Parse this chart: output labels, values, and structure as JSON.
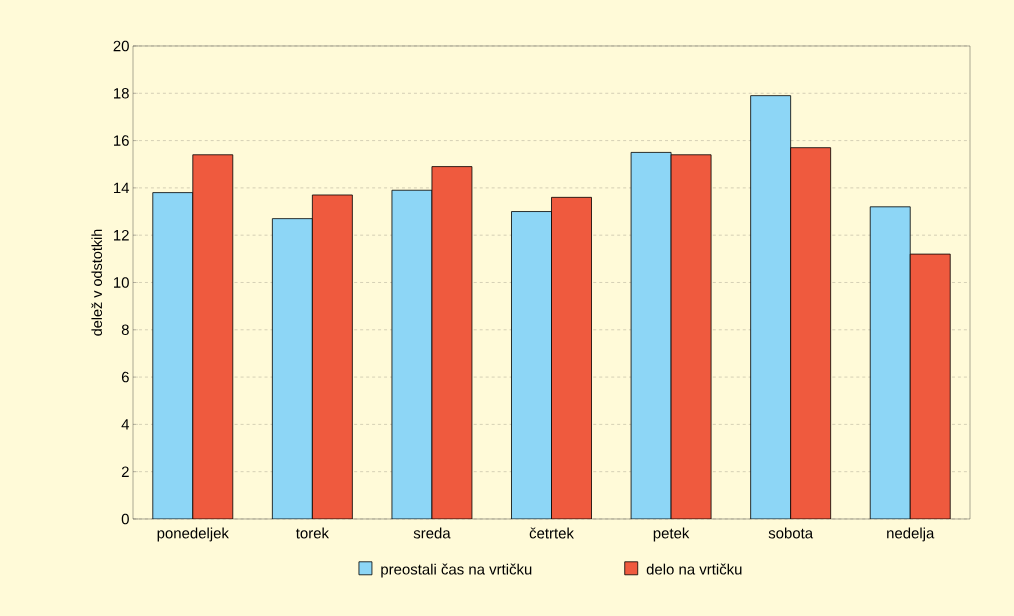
{
  "chart_data": {
    "type": "bar",
    "ylabel": "delež v odstotkih",
    "categories": [
      "ponedeljek",
      "torek",
      "sreda",
      "četrtek",
      "petek",
      "sobota",
      "nedelja"
    ],
    "series": [
      {
        "name": "preostali čas na vrtičku",
        "color": "#8dd6f6",
        "values": [
          13.8,
          12.7,
          13.9,
          13.0,
          15.5,
          17.9,
          13.2
        ]
      },
      {
        "name": "delo na vrtičku",
        "color": "#ef5a3e",
        "values": [
          15.4,
          13.7,
          14.9,
          13.6,
          15.4,
          15.7,
          11.2
        ]
      }
    ],
    "ylim": [
      0,
      20
    ],
    "yticks": [
      0,
      2,
      4,
      6,
      8,
      10,
      12,
      14,
      16,
      18,
      20
    ],
    "grid": "y",
    "legend": "bottom"
  }
}
